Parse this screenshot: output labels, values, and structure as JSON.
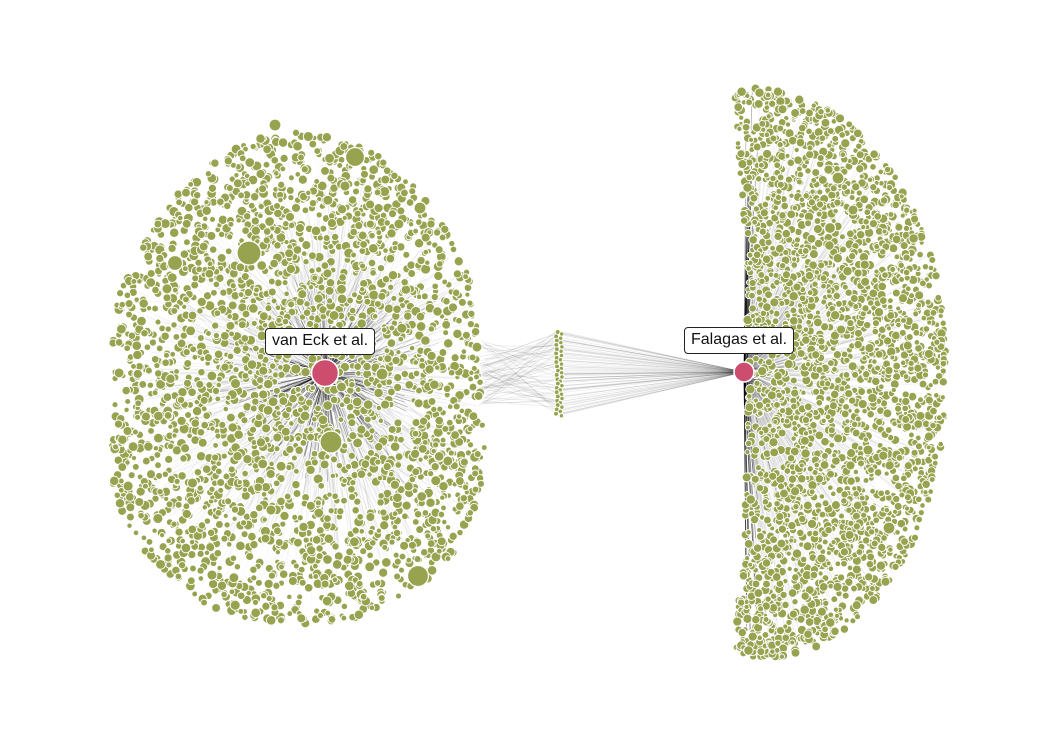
{
  "network": {
    "highlighted_nodes": [
      {
        "id": "van-eck",
        "label": "van Eck et al."
      },
      {
        "id": "falagas",
        "label": "Falagas et al."
      }
    ],
    "colors": {
      "node_fill": "#98a350",
      "node_stroke": "#ffffff",
      "highlight_fill": "#cc4d6d",
      "edge": "#000000",
      "background": "#ffffff"
    },
    "clusters": [
      {
        "name": "left-cluster",
        "shape": "kidney"
      },
      {
        "name": "middle-bridge",
        "shape": "thin-column"
      },
      {
        "name": "right-cluster",
        "shape": "half-moon"
      }
    ]
  }
}
